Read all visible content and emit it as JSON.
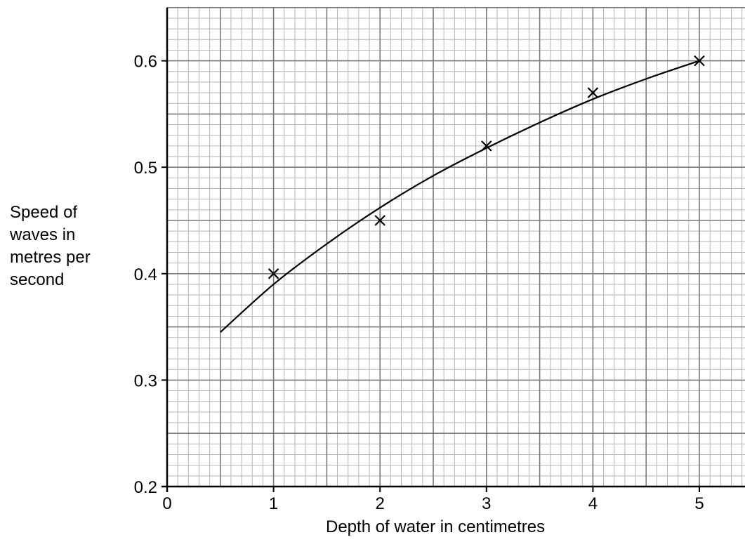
{
  "chart_data": {
    "type": "scatter",
    "title": "",
    "xlabel": "Depth of water in centimetres",
    "ylabel": [
      "Speed of",
      "waves in",
      "metres per",
      "second"
    ],
    "xlim": [
      0,
      5.5
    ],
    "ylim": [
      0.2,
      0.65
    ],
    "x_ticks": [
      0,
      1,
      2,
      3,
      4,
      5
    ],
    "x_tick_labels": [
      "0",
      "1",
      "2",
      "3",
      "4",
      "5"
    ],
    "y_ticks": [
      0.2,
      0.3,
      0.4,
      0.5,
      0.6
    ],
    "y_tick_labels": [
      "0.2",
      "0.3",
      "0.4",
      "0.5",
      "0.6"
    ],
    "grid": true,
    "points": {
      "marker": "x",
      "x": [
        1,
        2,
        3,
        4,
        5
      ],
      "y": [
        0.4,
        0.45,
        0.52,
        0.57,
        0.6
      ]
    },
    "curve": {
      "x": [
        0.5,
        1,
        1.5,
        2,
        2.5,
        3,
        3.5,
        4,
        4.5,
        5
      ],
      "y": [
        0.345,
        0.39,
        0.428,
        0.462,
        0.492,
        0.518,
        0.542,
        0.564,
        0.583,
        0.6
      ]
    }
  }
}
